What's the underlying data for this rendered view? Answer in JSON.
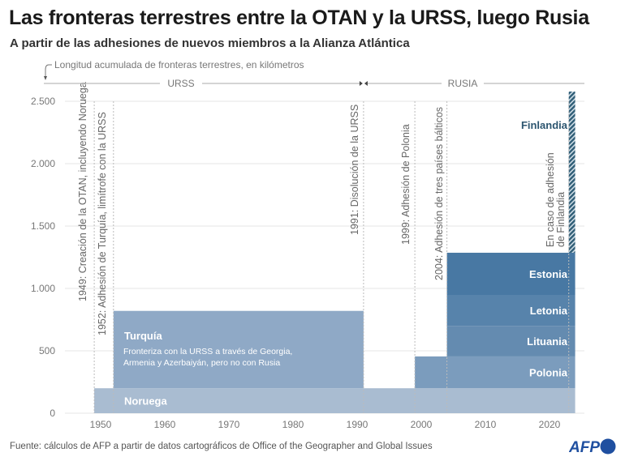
{
  "header": {
    "title": "Las fronteras terrestres entre la OTAN y la URSS, luego Rusia",
    "subtitle": "A partir de las adhesiones de nuevos miembros a la Alianza Atlántica"
  },
  "footer": {
    "source": "Fuente: cálculos de AFP a partir de datos cartográficos de Office of the Geographer and Global Issues",
    "logo": "AFP"
  },
  "chart_data": {
    "type": "area",
    "subtype": "stacked-step",
    "ylabel": "Longitud acumulada de fronteras terrestres, en kilómetros",
    "xlim": [
      1945,
      2025
    ],
    "ylim": [
      0,
      2600
    ],
    "xticks": [
      1950,
      1960,
      1970,
      1980,
      1990,
      2000,
      2010,
      2020
    ],
    "yticks": [
      0,
      500,
      1000,
      1500,
      2000,
      2500
    ],
    "ytick_labels": [
      "0",
      "500",
      "1.000",
      "1.500",
      "2.000",
      "2.500"
    ],
    "grid": "horizontal",
    "periods": [
      {
        "label": "URSS",
        "from": 1949,
        "to": 1991
      },
      {
        "label": "RUSIA",
        "from": 1991,
        "to": 2024
      }
    ],
    "series": [
      {
        "name": "Noruega",
        "start": 1949,
        "end": 2024,
        "value": 200,
        "base": 0,
        "color": "#a9bcd1"
      },
      {
        "name": "Turquía",
        "note": "Fronteriza con la URSS a través de Georgia, Armenia y Azerbaiyán, pero no con Rusia",
        "start": 1952,
        "end": 1991,
        "value": 620,
        "base": 200,
        "color": "#8fa9c6"
      },
      {
        "name": "Polonia",
        "start": 1999,
        "end": 2024,
        "value": 255,
        "base": 200,
        "color": "#7b9cbd"
      },
      {
        "name": "Lituania",
        "start": 2004,
        "end": 2024,
        "value": 245,
        "base": 455,
        "color": "#648bb0"
      },
      {
        "name": "Letonia",
        "start": 2004,
        "end": 2024,
        "value": 248,
        "base": 700,
        "color": "#5783ab"
      },
      {
        "name": "Estonia",
        "start": 2004,
        "end": 2024,
        "value": 338,
        "base": 948,
        "color": "#4878a3"
      },
      {
        "name": "Finlandia",
        "start": 2023,
        "end": 2024,
        "value": 1292,
        "base": 1286,
        "color": "#2f5d76",
        "hatched": true
      }
    ],
    "annotations": [
      {
        "year": 1949,
        "text": "1949: Creación de la OTAN, incluyendo Noruega"
      },
      {
        "year": 1952,
        "text": "1952: Adhesión de Turquía, limítrofe con la URSS"
      },
      {
        "year": 1991,
        "text": "1991: Disolución de la URSS"
      },
      {
        "year": 1999,
        "text": "1999: Adhesión de Polonia"
      },
      {
        "year": 2004,
        "text": "2004: Adhesión de tres países bálticos"
      },
      {
        "year": 2023,
        "text": "En caso de adhesión",
        "text2": "de Finlandia"
      }
    ]
  }
}
